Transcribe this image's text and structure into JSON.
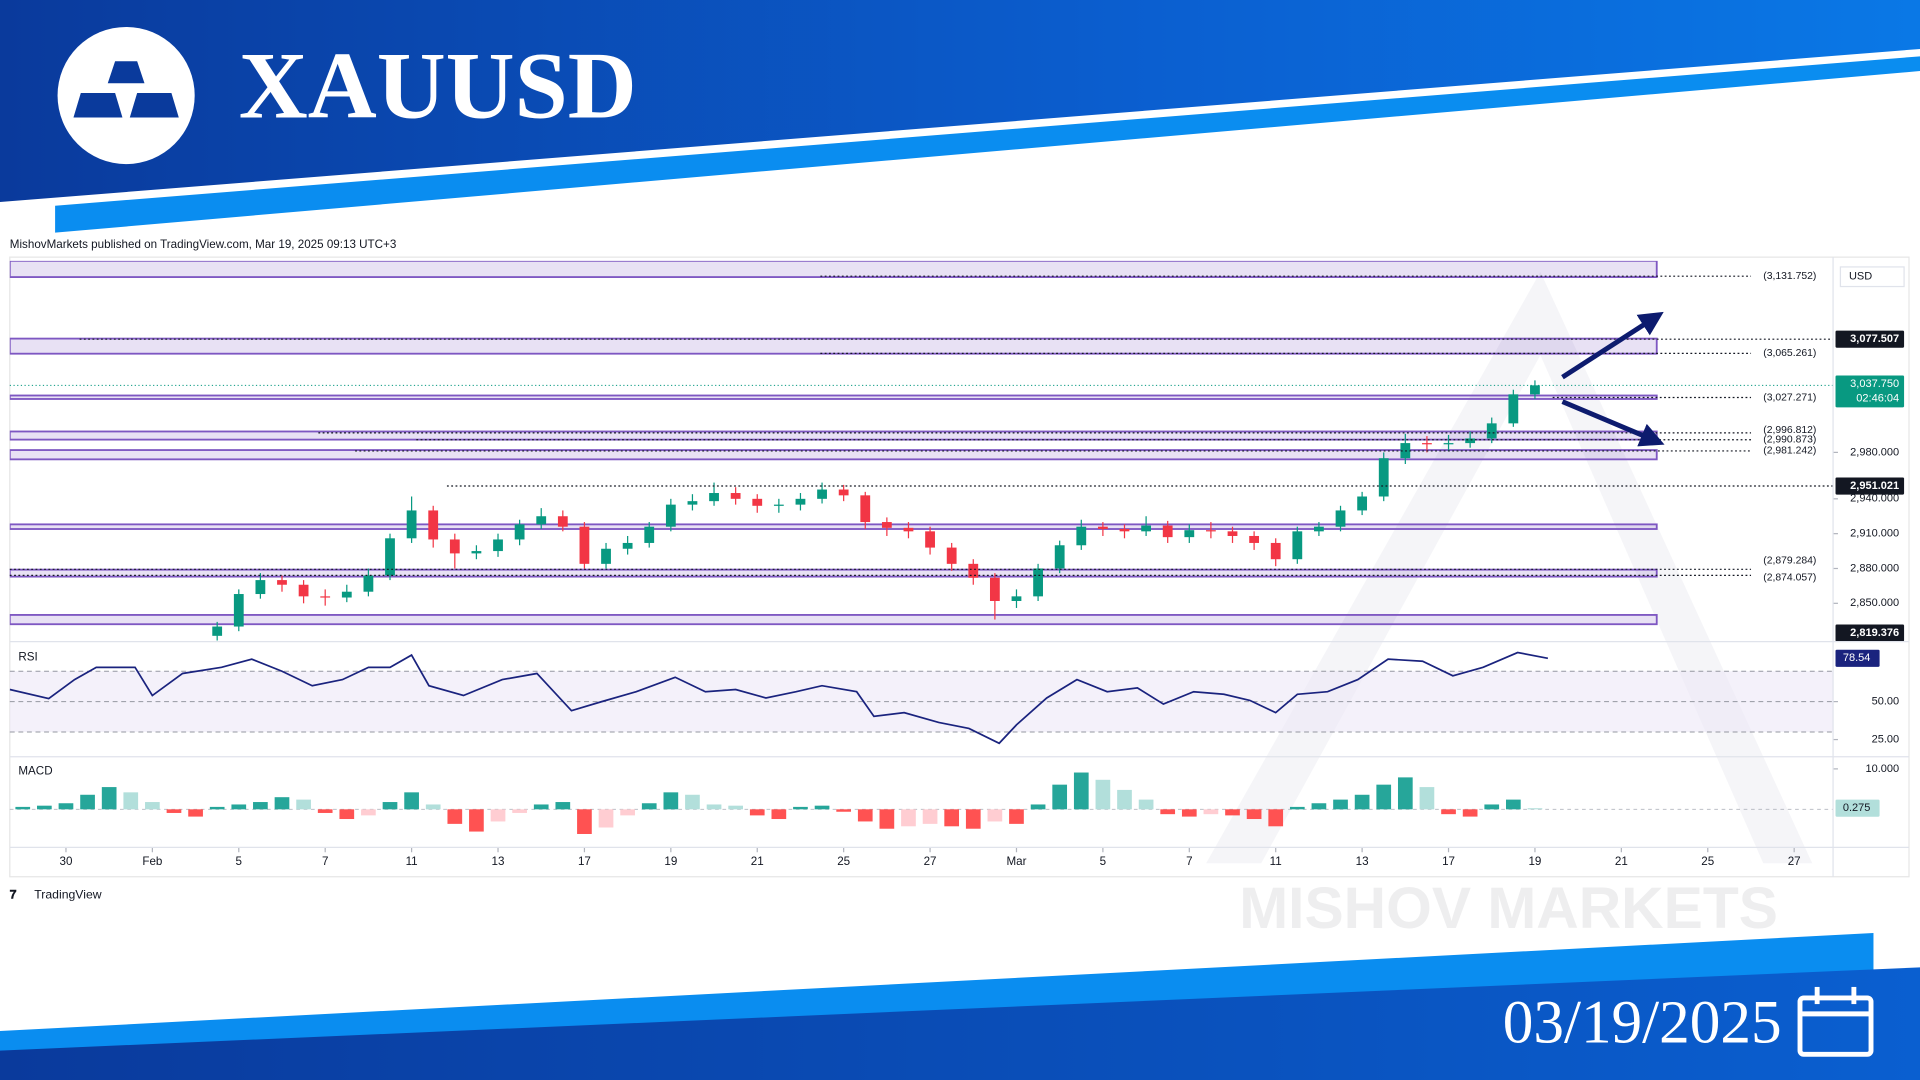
{
  "header": {
    "title": "XAUUSD",
    "date": "03/19/2025"
  },
  "attribution": "MishovMarkets published on TradingView.com, Mar 19, 2025 09:13 UTC+3",
  "footer": {
    "logo": "TradingView",
    "watermark": "MISHOV MARKETS"
  },
  "chart_data": [
    {
      "type": "candlestick",
      "currency": "USD",
      "up_color": "#089981",
      "down_color": "#f23645",
      "grid": false,
      "xlim": [
        -1.3,
        40.9
      ],
      "ylim": [
        2817,
        3145
      ],
      "xticks": [
        {
          "value": 0,
          "label": "30"
        },
        {
          "value": 2,
          "label": "Feb"
        },
        {
          "value": 4,
          "label": "5"
        },
        {
          "value": 6,
          "label": "7"
        },
        {
          "value": 8,
          "label": "11"
        },
        {
          "value": 10,
          "label": "13"
        },
        {
          "value": 12,
          "label": "17"
        },
        {
          "value": 14,
          "label": "19"
        },
        {
          "value": 16,
          "label": "21"
        },
        {
          "value": 18,
          "label": "25"
        },
        {
          "value": 20,
          "label": "27"
        },
        {
          "value": 22,
          "label": "Mar"
        },
        {
          "value": 24,
          "label": "5"
        },
        {
          "value": 26,
          "label": "7"
        },
        {
          "value": 28,
          "label": "11"
        },
        {
          "value": 30,
          "label": "13"
        },
        {
          "value": 32,
          "label": "17"
        },
        {
          "value": 34,
          "label": "19"
        },
        {
          "value": 36,
          "label": "21"
        },
        {
          "value": 38,
          "label": "25"
        },
        {
          "value": 40,
          "label": "27"
        }
      ],
      "yticks": [
        {
          "value": 2850,
          "label": "2,850.000"
        },
        {
          "value": 2880,
          "label": "2,880.000"
        },
        {
          "value": 2910,
          "label": "2,910.000"
        },
        {
          "value": 2940,
          "label": "2,940.000"
        },
        {
          "value": 2980,
          "label": "2,980.000"
        }
      ],
      "x": [
        3.5,
        4,
        4.5,
        5,
        5.5,
        6,
        6.5,
        7,
        7.5,
        8,
        8.5,
        9,
        9.5,
        10,
        10.5,
        11,
        11.5,
        12,
        12.5,
        13,
        13.5,
        14,
        14.5,
        15,
        15.5,
        16,
        16.5,
        17,
        17.5,
        18,
        18.5,
        19,
        19.5,
        20,
        20.5,
        21,
        21.5,
        22,
        22.5,
        23,
        23.5,
        24,
        24.5,
        25,
        25.5,
        26,
        26.5,
        27,
        27.5,
        28,
        28.5,
        29,
        29.5,
        30,
        30.5,
        31,
        31.5,
        32,
        32.5,
        33,
        33.5,
        34
      ],
      "open": [
        2822,
        2830,
        2858,
        2870,
        2866,
        2856,
        2855,
        2860,
        2874,
        2906,
        2930,
        2905,
        2893,
        2895,
        2905,
        2918,
        2925,
        2916,
        2884,
        2897,
        2902,
        2916,
        2935,
        2938,
        2945,
        2940,
        2934,
        2935,
        2940,
        2948,
        2943,
        2920,
        2915,
        2912,
        2898,
        2884,
        2872,
        2852,
        2856,
        2880,
        2900,
        2916,
        2914,
        2912,
        2917,
        2907,
        2913,
        2912,
        2908,
        2902,
        2888,
        2912,
        2916,
        2930,
        2942,
        2975,
        2988,
        2987,
        2988,
        2992,
        3005,
        3030
      ],
      "high": [
        2834,
        2862,
        2876,
        2874,
        2870,
        2862,
        2866,
        2880,
        2910,
        2942,
        2934,
        2910,
        2900,
        2910,
        2922,
        2932,
        2930,
        2920,
        2902,
        2908,
        2920,
        2940,
        2944,
        2954,
        2950,
        2944,
        2940,
        2945,
        2954,
        2952,
        2946,
        2924,
        2920,
        2916,
        2902,
        2888,
        2876,
        2862,
        2884,
        2904,
        2922,
        2920,
        2918,
        2925,
        2921,
        2918,
        2920,
        2916,
        2912,
        2906,
        2916,
        2920,
        2934,
        2946,
        2980,
        2996,
        2994,
        2995,
        2998,
        3010,
        3034,
        3042
      ],
      "low": [
        2818,
        2826,
        2854,
        2860,
        2850,
        2848,
        2851,
        2856,
        2870,
        2902,
        2898,
        2880,
        2888,
        2890,
        2900,
        2914,
        2912,
        2880,
        2880,
        2892,
        2898,
        2912,
        2930,
        2934,
        2935,
        2928,
        2928,
        2930,
        2936,
        2938,
        2914,
        2908,
        2906,
        2892,
        2878,
        2866,
        2836,
        2846,
        2852,
        2876,
        2896,
        2908,
        2906,
        2908,
        2902,
        2902,
        2906,
        2902,
        2896,
        2882,
        2884,
        2908,
        2912,
        2926,
        2938,
        2970,
        2980,
        2981,
        2984,
        2988,
        3002,
        3026
      ],
      "close": [
        2830,
        2858,
        2870,
        2866,
        2856,
        2855,
        2860,
        2874,
        2906,
        2930,
        2905,
        2893,
        2895,
        2905,
        2918,
        2925,
        2916,
        2884,
        2897,
        2902,
        2916,
        2935,
        2938,
        2945,
        2940,
        2934,
        2935,
        2940,
        2948,
        2943,
        2920,
        2915,
        2912,
        2898,
        2884,
        2872,
        2852,
        2856,
        2880,
        2900,
        2916,
        2914,
        2912,
        2917,
        2907,
        2913,
        2912,
        2908,
        2902,
        2888,
        2912,
        2916,
        2930,
        2942,
        2975,
        2988,
        2987,
        2988,
        2992,
        3005,
        3030,
        3037.75
      ],
      "zone_color": "#7e57c2",
      "zones": [
        [
          3131,
          3145
        ],
        [
          3065,
          3078
        ],
        [
          3026,
          3029
        ],
        [
          2991,
          2998
        ],
        [
          2974,
          2982
        ],
        [
          2914,
          2918
        ],
        [
          2873,
          2879
        ],
        [
          2832,
          2840
        ]
      ],
      "levels": [
        {
          "value": 3131.752,
          "label": "(3,131.752)"
        },
        {
          "value": 3065.261,
          "label": "(3,065.261)"
        },
        {
          "value": 3027.271,
          "label": "(3,027.271)"
        },
        {
          "value": 2996.812,
          "label": "(2,996.812)"
        },
        {
          "value": 2990.873,
          "label": "(2,990.873)"
        },
        {
          "value": 2981.242,
          "label": "(2,981.242)"
        },
        {
          "value": 2879.284,
          "label": "(2,879.284)"
        },
        {
          "value": 2874.057,
          "label": "(2,874.057)"
        }
      ],
      "price_labels": [
        {
          "value": 3077.507,
          "label": "3,077.507"
        },
        {
          "value": 2951.021,
          "label": "2,951.021"
        },
        {
          "value": 2819.376,
          "label": "2,819.376"
        }
      ],
      "current_price": {
        "value": 3037.75,
        "label": "3,037.750",
        "countdown": "02:46:04",
        "color": "#089981"
      }
    },
    {
      "type": "line",
      "title": "RSI",
      "color": "#1a237e",
      "band_color": "#ede7f6",
      "xlim": [
        -1.3,
        40.9
      ],
      "ylim": [
        14.5,
        89.5
      ],
      "yticks": [
        {
          "value": 50,
          "label": "50.00"
        },
        {
          "value": 25,
          "label": "25.00"
        }
      ],
      "levels": [
        70,
        50,
        30
      ],
      "x": [
        -1.3,
        -0.4,
        0.2,
        0.7,
        1.6,
        2.0,
        2.7,
        3.6,
        4.3,
        5.0,
        5.7,
        6.4,
        7.0,
        7.5,
        8.0,
        8.4,
        9.2,
        10.1,
        10.9,
        11.7,
        12.4,
        13.2,
        14.1,
        14.8,
        15.5,
        16.2,
        16.9,
        17.5,
        18.3,
        18.7,
        19.4,
        20.2,
        20.9,
        21.6,
        22.0,
        22.7,
        23.4,
        24.1,
        24.8,
        25.4,
        26.1,
        26.8,
        27.4,
        28.0,
        28.5,
        29.2,
        29.9,
        30.6,
        31.4,
        32.1,
        32.8,
        33.6,
        34.3
      ],
      "values": [
        58,
        52,
        64.5,
        72.6,
        72.6,
        54,
        68.5,
        72.6,
        78,
        70,
        60.5,
        64.5,
        72.6,
        72.6,
        80.6,
        60.5,
        54,
        64.5,
        68.5,
        44,
        50,
        56.5,
        66,
        56.5,
        58,
        52.4,
        56.5,
        60.5,
        56.5,
        40.3,
        42.7,
        36.3,
        32.3,
        22.6,
        34.7,
        52.4,
        64.5,
        56.5,
        59,
        48.4,
        56.5,
        54.8,
        50.8,
        42.7,
        54.8,
        56.5,
        64.5,
        78,
        76.6,
        67,
        72.6,
        82.3,
        78.54
      ]
    },
    {
      "type": "bar",
      "title": "MACD",
      "colors": {
        "up_rising": "#26a69a",
        "up_falling": "#b2dfdb",
        "down_falling": "#ff5252",
        "down_rising": "#ffcdd2"
      },
      "xlim": [
        -1.3,
        40.9
      ],
      "ylim": [
        -8.8,
        12.4
      ],
      "yticks": [
        {
          "value": 10,
          "label": "10.000"
        }
      ],
      "x": [
        -1,
        -0.5,
        0,
        0.5,
        1,
        1.5,
        2,
        2.5,
        3,
        3.5,
        4,
        4.5,
        5,
        5.5,
        6,
        6.5,
        7,
        7.5,
        8,
        8.5,
        9,
        9.5,
        10,
        10.5,
        11,
        11.5,
        12,
        12.5,
        13,
        13.5,
        14,
        14.5,
        15,
        15.5,
        16,
        16.5,
        17,
        17.5,
        18,
        18.5,
        19,
        19.5,
        20,
        20.5,
        21,
        21.5,
        22,
        22.5,
        23,
        23.5,
        24,
        24.5,
        25,
        25.5,
        26,
        26.5,
        27,
        27.5,
        28,
        28.5,
        29,
        29.5,
        30,
        30.5,
        31,
        31.5,
        32,
        32.5,
        33,
        33.5,
        34
      ],
      "values": [
        0.6,
        0.9,
        1.5,
        3.6,
        5.5,
        4.2,
        1.8,
        -0.9,
        -1.8,
        0.6,
        1.2,
        1.8,
        3.0,
        2.4,
        -0.9,
        -2.4,
        -1.5,
        1.8,
        4.2,
        1.2,
        -3.6,
        -5.5,
        -3.0,
        -0.9,
        1.2,
        1.8,
        -6.1,
        -4.5,
        -1.5,
        1.5,
        4.2,
        3.6,
        1.2,
        0.9,
        -1.5,
        -2.4,
        0.6,
        0.9,
        -0.6,
        -3.0,
        -4.8,
        -4.2,
        -3.6,
        -4.2,
        -4.8,
        -3.0,
        -3.6,
        1.2,
        6.1,
        9.1,
        7.3,
        4.8,
        2.4,
        -1.2,
        -1.8,
        -1.2,
        -1.5,
        -2.4,
        -4.2,
        0.6,
        1.5,
        2.4,
        3.6,
        6.1,
        7.9,
        5.5,
        -1.2,
        -1.8,
        1.2,
        2.4,
        0.275
      ]
    }
  ]
}
